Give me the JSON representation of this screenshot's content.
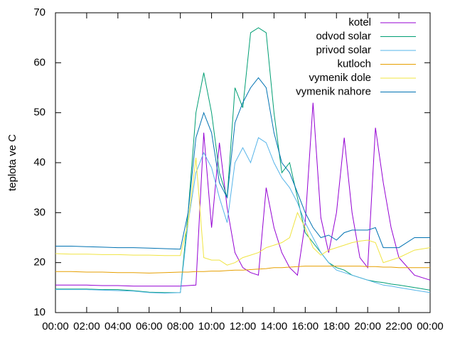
{
  "chart_data": {
    "type": "line",
    "ylabel": "teplota ve C",
    "x": [
      0,
      1,
      2,
      3,
      4,
      5,
      6,
      7,
      8,
      8.5,
      9,
      9.5,
      10,
      10.5,
      11,
      11.5,
      12,
      12.5,
      13,
      13.5,
      14,
      14.5,
      15,
      15.5,
      16,
      16.5,
      17,
      17.5,
      18,
      18.5,
      19,
      19.5,
      20,
      20.5,
      21,
      21.5,
      22,
      23,
      24
    ],
    "xlim": [
      0,
      24
    ],
    "xticks": [
      {
        "value": 0,
        "label": "00:00"
      },
      {
        "value": 2,
        "label": "02:00"
      },
      {
        "value": 4,
        "label": "04:00"
      },
      {
        "value": 6,
        "label": "06:00"
      },
      {
        "value": 8,
        "label": "08:00"
      },
      {
        "value": 10,
        "label": "10:00"
      },
      {
        "value": 12,
        "label": "12:00"
      },
      {
        "value": 14,
        "label": "14:00"
      },
      {
        "value": 16,
        "label": "16:00"
      },
      {
        "value": 18,
        "label": "18:00"
      },
      {
        "value": 20,
        "label": "20:00"
      },
      {
        "value": 22,
        "label": "22:00"
      },
      {
        "value": 24,
        "label": "00:00"
      }
    ],
    "ylim": [
      10,
      70
    ],
    "yticks": [
      10,
      20,
      30,
      40,
      50,
      60,
      70
    ],
    "legend": "top-right",
    "series": [
      {
        "name": "kotel",
        "color": "#9400d3",
        "values": [
          15.5,
          15.5,
          15.5,
          15.4,
          15.4,
          15.3,
          15.3,
          15.3,
          15.3,
          15.4,
          15.5,
          46,
          27,
          44,
          31,
          22,
          19,
          18,
          17.5,
          35,
          27,
          22,
          19,
          17.5,
          28,
          52,
          29,
          22,
          30,
          45,
          30,
          21,
          19,
          47,
          36,
          27,
          21,
          17.5,
          16.5
        ]
      },
      {
        "name": "odvod solar",
        "color": "#009e73",
        "values": [
          14.7,
          14.7,
          14.7,
          14.6,
          14.6,
          14.4,
          14.1,
          14,
          14,
          30,
          50,
          58,
          50,
          38,
          33,
          55,
          51,
          66,
          67,
          66,
          50,
          38,
          40,
          33,
          26,
          24,
          22,
          20,
          19,
          18.5,
          17.5,
          17,
          16.5,
          16.2,
          16,
          15.7,
          15.5,
          15,
          14.5
        ]
      },
      {
        "name": "privod solar",
        "color": "#56b4e9",
        "values": [
          14.6,
          14.6,
          14.6,
          14.5,
          14.4,
          14.3,
          14,
          13.9,
          14,
          28,
          38,
          42,
          39,
          33,
          28,
          40,
          43,
          40,
          45,
          44,
          40,
          37,
          35,
          32,
          28,
          25,
          22,
          20,
          18.5,
          18,
          17.5,
          17,
          16.5,
          16,
          15.5,
          15.3,
          15,
          14.5,
          14
        ]
      },
      {
        "name": "kutloch",
        "color": "#e69f00",
        "values": [
          18.2,
          18.2,
          18.1,
          18.1,
          18,
          18,
          17.9,
          18,
          18.1,
          18.1,
          18.2,
          18.2,
          18.3,
          18.3,
          18.4,
          18.5,
          18.5,
          18.6,
          18.7,
          18.8,
          19,
          19,
          19.1,
          19.2,
          19.3,
          19.3,
          19.3,
          19.3,
          19.3,
          19.3,
          19.3,
          19.3,
          19.2,
          19.2,
          19.1,
          19.1,
          19,
          19,
          19
        ]
      },
      {
        "name": "vymenik dole",
        "color": "#f0e442",
        "values": [
          21.8,
          21.7,
          21.7,
          21.6,
          21.6,
          21.5,
          21.5,
          21.4,
          21.4,
          28,
          41,
          21,
          20.5,
          20.5,
          19.5,
          20,
          21,
          21.5,
          22,
          23,
          23.5,
          24,
          25,
          30,
          27,
          23,
          21.5,
          22.5,
          23,
          23.5,
          24,
          24.3,
          24.5,
          24,
          20,
          20.5,
          21,
          22.5,
          23
        ]
      },
      {
        "name": "vymenik nahore",
        "color": "#0072b2",
        "values": [
          23.3,
          23.3,
          23.2,
          23.1,
          23,
          23,
          22.9,
          22.8,
          22.7,
          30,
          45,
          50,
          46,
          36,
          33,
          48,
          52,
          55,
          57,
          55,
          46,
          40,
          38,
          34,
          30,
          27,
          25,
          25.5,
          24.5,
          26,
          26.5,
          26.5,
          26.5,
          27,
          23,
          23,
          23,
          25,
          25
        ]
      }
    ]
  }
}
